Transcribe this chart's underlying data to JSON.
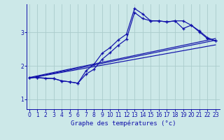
{
  "xlabel": "Graphe des températures (°c)",
  "bg_color": "#cce8e8",
  "line_color": "#1010aa",
  "grid_color": "#aacccc",
  "x_ticks": [
    0,
    1,
    2,
    3,
    4,
    5,
    6,
    7,
    8,
    9,
    10,
    11,
    12,
    13,
    14,
    15,
    16,
    17,
    18,
    19,
    20,
    21,
    22,
    23
  ],
  "y_ticks": [
    1,
    2,
    3
  ],
  "ylim": [
    0.7,
    3.85
  ],
  "xlim": [
    -0.3,
    23.5
  ],
  "series1_x": [
    0,
    1,
    2,
    3,
    4,
    5,
    6,
    7,
    8,
    9,
    10,
    11,
    12,
    13,
    14,
    15,
    16,
    17,
    18,
    19,
    20,
    21,
    22,
    23
  ],
  "series1_y": [
    1.65,
    1.65,
    1.62,
    1.62,
    1.55,
    1.52,
    1.48,
    1.75,
    1.9,
    2.2,
    2.4,
    2.62,
    2.8,
    3.6,
    3.42,
    3.35,
    3.35,
    3.32,
    3.35,
    3.35,
    3.22,
    3.02,
    2.82,
    2.75
  ],
  "series2_x": [
    0,
    1,
    3,
    4,
    5,
    6,
    7,
    8,
    9,
    10,
    11,
    12,
    13,
    14,
    15,
    16,
    17,
    18,
    19,
    20,
    21,
    22,
    23
  ],
  "series2_y": [
    1.65,
    1.65,
    1.62,
    1.55,
    1.52,
    1.48,
    1.85,
    2.05,
    2.38,
    2.55,
    2.78,
    2.95,
    3.72,
    3.56,
    3.35,
    3.35,
    3.32,
    3.35,
    3.12,
    3.22,
    3.05,
    2.85,
    2.75
  ],
  "trend1_x": [
    0,
    23
  ],
  "trend1_y": [
    1.63,
    2.77
  ],
  "trend2_x": [
    0,
    23
  ],
  "trend2_y": [
    1.63,
    2.63
  ],
  "trend3_x": [
    0,
    23
  ],
  "trend3_y": [
    1.65,
    2.82
  ]
}
